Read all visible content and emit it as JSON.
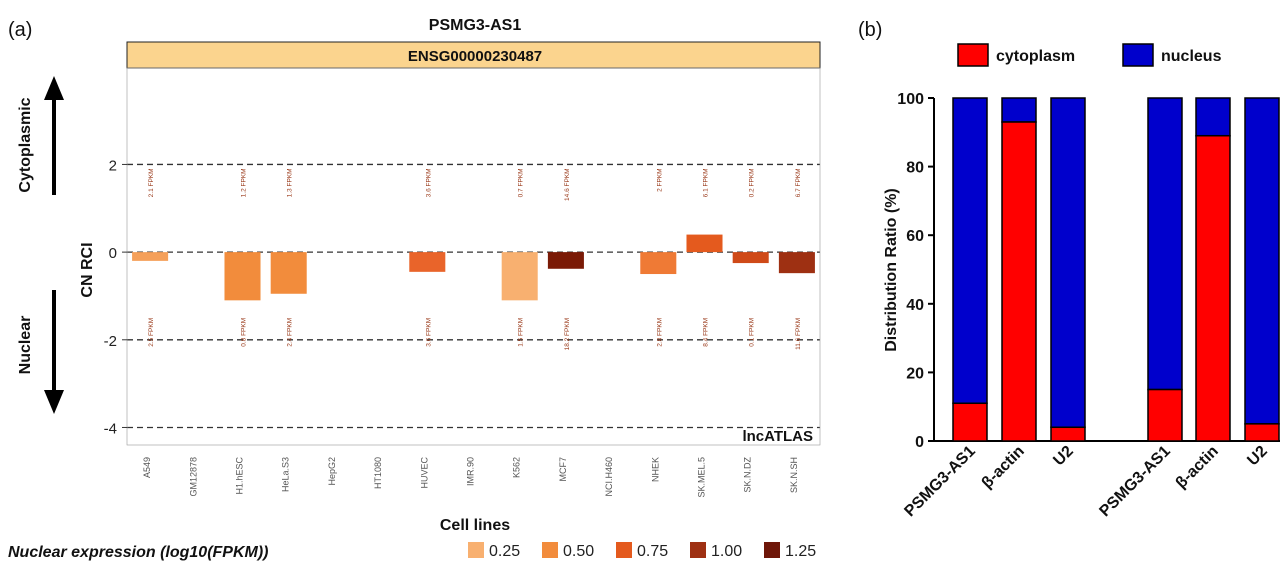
{
  "chart_data": [
    {
      "panel_label": "(a)",
      "type": "bar",
      "title": "PSMG3-AS1",
      "subtitle": "ENSG00000230487",
      "ylabel": "CN RCI",
      "xlabel": "Cell lines",
      "ylim": [
        -4.4,
        4.2
      ],
      "yticks": [
        2,
        0,
        -2,
        -4
      ],
      "side_labels": {
        "top": "Cytoplasmic",
        "bottom": "Nuclear"
      },
      "watermark": "lncATLAS",
      "categories": [
        "A549",
        "GM12878",
        "H1.hESC",
        "HeLa.S3",
        "HepG2",
        "HT1080",
        "HUVEC",
        "IMR.90",
        "K562",
        "MCF7",
        "NCI.H460",
        "NHEK",
        "SK.MEL.5",
        "SK.N.DZ",
        "SK.N.SH"
      ],
      "values": [
        -0.2,
        null,
        -1.1,
        -0.95,
        null,
        null,
        -0.45,
        null,
        -1.1,
        -0.38,
        null,
        -0.5,
        0.4,
        -0.25,
        -0.48
      ],
      "bar_colors": [
        "#f5a05a",
        null,
        "#f28c3c",
        "#f28c3c",
        null,
        null,
        "#e9642a",
        null,
        "#f8b070",
        "#7a1a06",
        null,
        "#ef7a35",
        "#e45a1e",
        "#cf4a18",
        "#9e3012"
      ],
      "fpkm_top": [
        "2.1 FPKM",
        null,
        "1.2 FPKM",
        "1.3 FPKM",
        null,
        null,
        "3.6 FPKM",
        null,
        "0.7 FPKM",
        "14.6 FPKM",
        null,
        "2 FPKM",
        "6.1 FPKM",
        "0.2 FPKM",
        "6.7 FPKM"
      ],
      "fpkm_bottom": [
        "2.5 FPKM",
        null,
        "0.8 FPKM",
        "2.4 FPKM",
        null,
        null,
        "3.6 FPKM",
        null,
        "1.5 FPKM",
        "18.2 FPKM",
        null,
        "2.8 FPKM",
        "8.4 FPKM",
        "0.1 FPKM",
        "11.6 FPKM"
      ],
      "legend": {
        "title": "Nuclear expression (log10(FPKM))",
        "items": [
          {
            "label": "0.25",
            "color": "#f8b070"
          },
          {
            "label": "0.50",
            "color": "#f28c3c"
          },
          {
            "label": "0.75",
            "color": "#e45a1e"
          },
          {
            "label": "1.00",
            "color": "#9e3012"
          },
          {
            "label": "1.25",
            "color": "#6e1608"
          }
        ]
      }
    },
    {
      "panel_label": "(b)",
      "type": "bar",
      "stacked": true,
      "ylabel": "Distribution Ratio (%)",
      "ylim": [
        0,
        100
      ],
      "yticks": [
        0,
        20,
        40,
        60,
        80,
        100
      ],
      "categories": [
        "PSMG3-AS1",
        "β-actin",
        "U2",
        "PSMG3-AS1",
        "β-actin",
        "U2"
      ],
      "series": [
        {
          "name": "cytoplasm",
          "color": "#ff0000",
          "values": [
            11,
            93,
            4,
            15,
            89,
            5
          ]
        },
        {
          "name": "nucleus",
          "color": "#0000cc",
          "values": [
            89,
            7,
            96,
            85,
            11,
            95
          ]
        }
      ],
      "legend_position": "top"
    }
  ]
}
